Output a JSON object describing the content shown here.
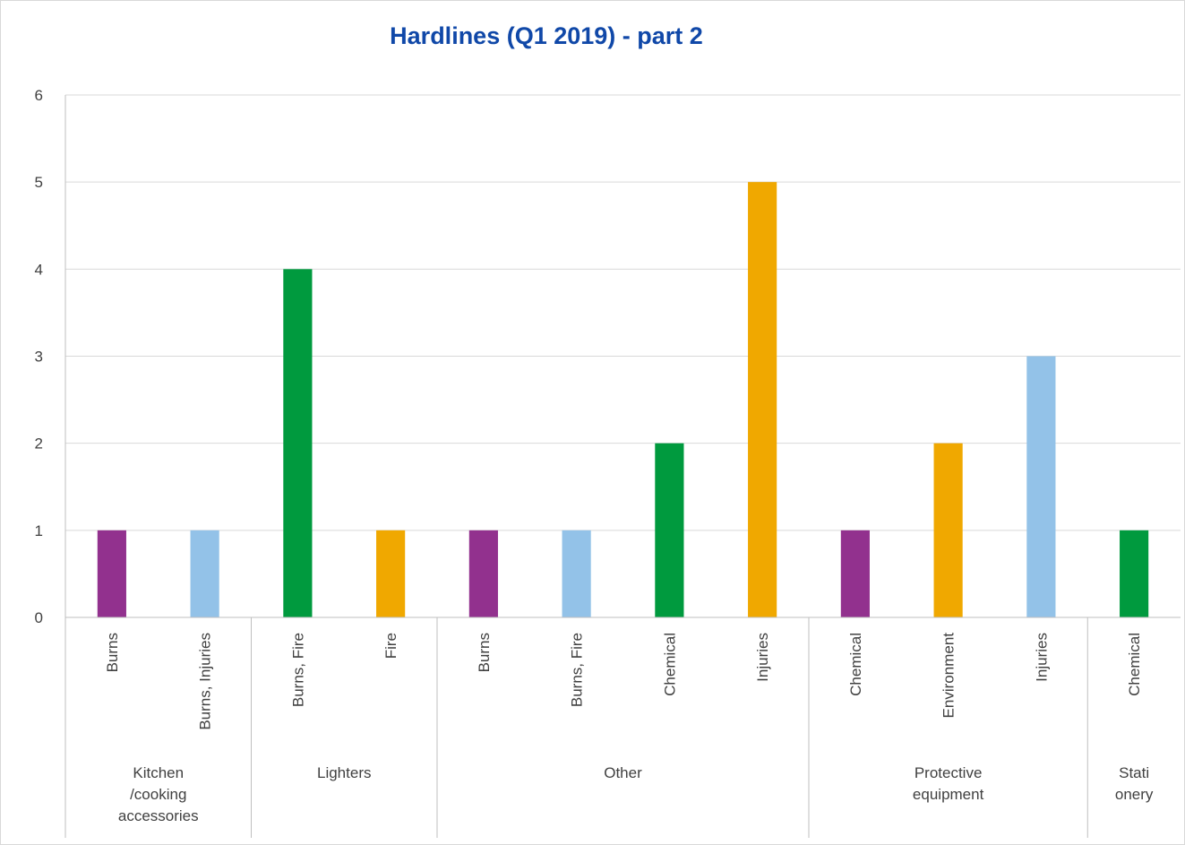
{
  "chart_data": {
    "type": "bar",
    "title": "Hardlines (Q1 2019) - part 2",
    "xlabel": "",
    "ylabel": "",
    "ylim": [
      0,
      6
    ],
    "yticks": [
      "0",
      "1",
      "2",
      "3",
      "4",
      "5",
      "6"
    ],
    "grid": true,
    "legend": "none",
    "colors": {
      "Burns": "#92318e",
      "Burns, Injuries": "#93c2e8",
      "Burns, Fire": "#009a3e",
      "Fire": "#f0a800",
      "Chemical": "#009a3e",
      "Injuries": "#f0a800",
      "Environment": "#f0a800"
    },
    "groups": [
      {
        "label_lines": [
          "Kitchen",
          "/cooking",
          "accessories"
        ],
        "bars": [
          {
            "category": "Burns",
            "value": 1,
            "color": "#92318e"
          },
          {
            "category": "Burns, Injuries",
            "value": 1,
            "color": "#93c2e8"
          }
        ]
      },
      {
        "label_lines": [
          "Lighters"
        ],
        "bars": [
          {
            "category": "Burns, Fire",
            "value": 4,
            "color": "#009a3e"
          },
          {
            "category": "Fire",
            "value": 1,
            "color": "#f0a800"
          }
        ]
      },
      {
        "label_lines": [
          "Other"
        ],
        "bars": [
          {
            "category": "Burns",
            "value": 1,
            "color": "#92318e"
          },
          {
            "category": "Burns, Fire",
            "value": 1,
            "color": "#93c2e8"
          },
          {
            "category": "Chemical",
            "value": 2,
            "color": "#009a3e"
          },
          {
            "category": "Injuries",
            "value": 5,
            "color": "#f0a800"
          }
        ]
      },
      {
        "label_lines": [
          "Protective",
          "equipment"
        ],
        "bars": [
          {
            "category": "Chemical",
            "value": 1,
            "color": "#92318e"
          },
          {
            "category": "Environment",
            "value": 2,
            "color": "#f0a800"
          },
          {
            "category": "Injuries",
            "value": 3,
            "color": "#93c2e8"
          }
        ]
      },
      {
        "label_lines": [
          "Stati",
          "onery"
        ],
        "bars": [
          {
            "category": "Chemical",
            "value": 1,
            "color": "#009a3e"
          }
        ]
      }
    ]
  }
}
